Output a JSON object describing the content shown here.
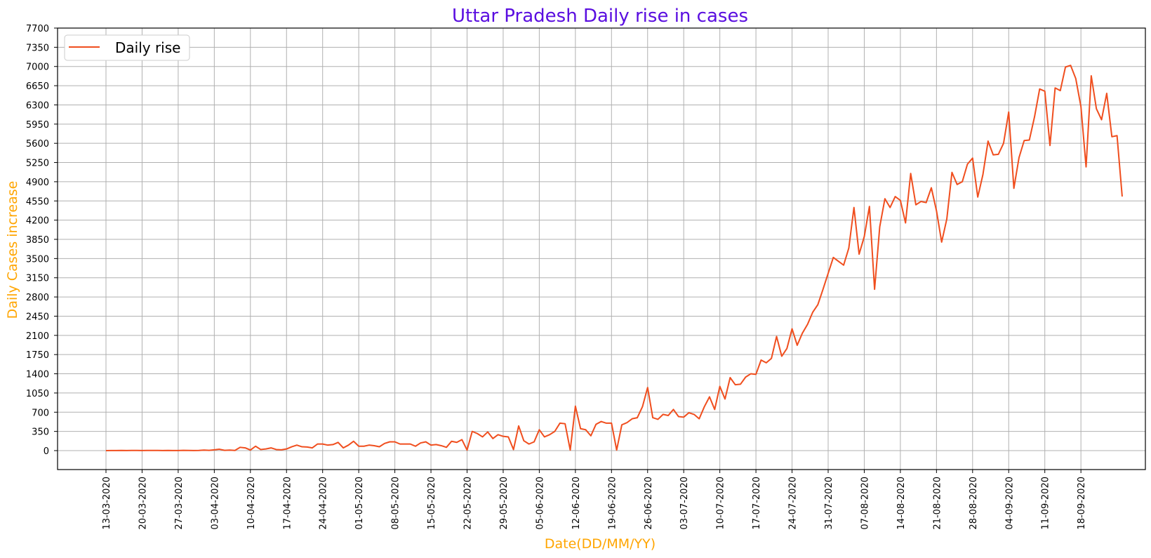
{
  "chart_data": {
    "type": "line",
    "title": "Uttar Pradesh Daily rise in cases",
    "xlabel": "Date(DD/MM/YY)",
    "ylabel": "Daily Cases increase",
    "ylim": [
      0,
      7700
    ],
    "yticks": [
      0,
      350,
      700,
      1050,
      1400,
      1750,
      2100,
      2450,
      2800,
      3150,
      3500,
      3850,
      4200,
      4550,
      4900,
      5250,
      5600,
      5950,
      6300,
      6650,
      7000,
      7350,
      7700
    ],
    "xticks": [
      "13-03-2020",
      "20-03-2020",
      "27-03-2020",
      "03-04-2020",
      "10-04-2020",
      "17-04-2020",
      "24-04-2020",
      "01-05-2020",
      "08-05-2020",
      "15-05-2020",
      "22-05-2020",
      "29-05-2020",
      "05-06-2020",
      "12-06-2020",
      "19-06-2020",
      "26-06-2020",
      "03-07-2020",
      "10-07-2020",
      "17-07-2020",
      "24-07-2020",
      "31-07-2020",
      "07-08-2020",
      "14-08-2020",
      "21-08-2020",
      "28-08-2020",
      "04-09-2020",
      "11-09-2020",
      "18-09-2020"
    ],
    "x_start": "13-03-2020",
    "x_end": "24-09-2020",
    "grid": true,
    "legend_position": "top-left",
    "series": [
      {
        "name": "Daily rise",
        "color": "#f04e1e",
        "values": [
          0,
          2,
          1,
          3,
          2,
          3,
          4,
          2,
          3,
          4,
          3,
          2,
          3,
          1,
          2,
          5,
          3,
          2,
          4,
          10,
          5,
          15,
          25,
          5,
          10,
          3,
          60,
          50,
          10,
          80,
          20,
          30,
          50,
          20,
          15,
          30,
          70,
          100,
          70,
          65,
          50,
          120,
          120,
          100,
          110,
          150,
          50,
          100,
          170,
          80,
          80,
          100,
          90,
          70,
          130,
          160,
          160,
          120,
          120,
          120,
          80,
          140,
          160,
          100,
          110,
          90,
          60,
          170,
          150,
          200,
          10,
          350,
          310,
          250,
          340,
          220,
          290,
          260,
          250,
          20,
          450,
          180,
          120,
          160,
          380,
          250,
          290,
          350,
          500,
          490,
          10,
          810,
          400,
          380,
          270,
          480,
          530,
          500,
          500,
          10,
          470,
          510,
          580,
          600,
          800,
          1150,
          600,
          570,
          660,
          640,
          750,
          620,
          610,
          690,
          660,
          580,
          800,
          980,
          750,
          1170,
          940,
          1330,
          1200,
          1210,
          1340,
          1400,
          1390,
          1650,
          1600,
          1680,
          2080,
          1720,
          1860,
          2220,
          1920,
          2140,
          2300,
          2520,
          2660,
          2940,
          3230,
          3520,
          3450,
          3380,
          3690,
          4430,
          3580,
          3900,
          4450,
          2940,
          4080,
          4590,
          4430,
          4630,
          4560,
          4150,
          5050,
          4480,
          4540,
          4520,
          4790,
          4370,
          3800,
          4220,
          5070,
          4850,
          4900,
          5220,
          5330,
          4620,
          5030,
          5640,
          5390,
          5400,
          5600,
          6170,
          4780,
          5340,
          5650,
          5660,
          6080,
          6590,
          6550,
          5560,
          6610,
          6560,
          6990,
          7020,
          6780,
          6270,
          5170,
          6830,
          6230,
          6030,
          6510,
          5720,
          5740,
          4630
        ]
      }
    ]
  }
}
